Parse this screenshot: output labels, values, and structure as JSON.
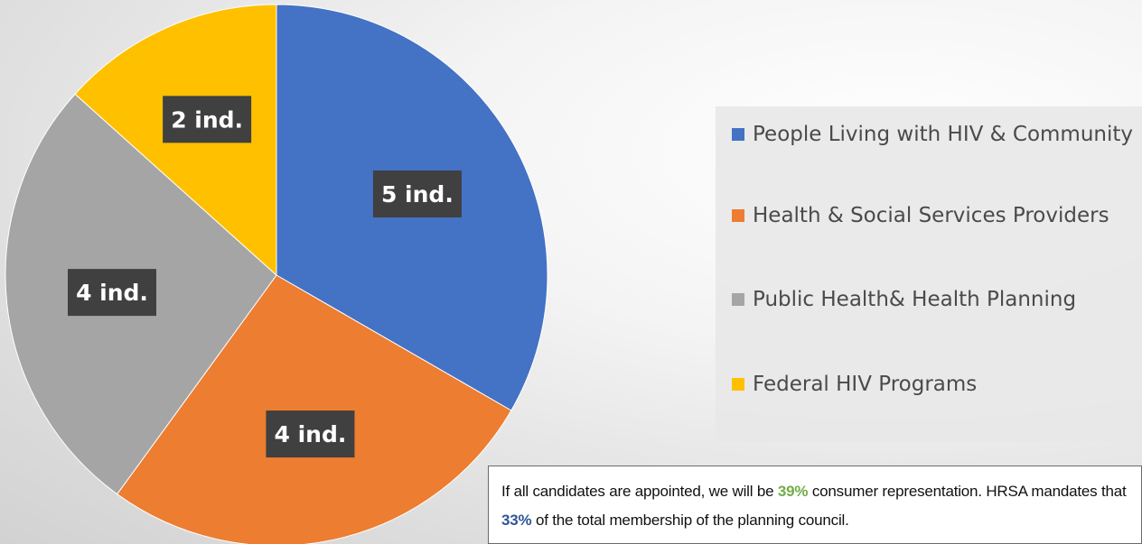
{
  "chart_data": {
    "type": "pie",
    "categories": [
      "People Living with HIV & Community",
      "Health & Social Services Providers",
      "Public Health& Health Planning",
      "Federal HIV Programs"
    ],
    "values": [
      5,
      4,
      4,
      2
    ],
    "data_labels": [
      "5 ind.",
      "4 ind.",
      "4 ind.",
      "2 ind."
    ],
    "colors": [
      "#4472c4",
      "#ed7d31",
      "#a5a5a5",
      "#ffc000"
    ],
    "legend_position": "right"
  },
  "legend": {
    "items": [
      {
        "label": "People Living with HIV & Community",
        "color": "#4472c4"
      },
      {
        "label": "Health & Social Services Providers",
        "color": "#ed7d31"
      },
      {
        "label": "Public Health& Health Planning",
        "color": "#a5a5a5"
      },
      {
        "label": "Federal HIV Programs",
        "color": "#ffc000"
      }
    ]
  },
  "note": {
    "part1": "If all candidates are appointed, we will be ",
    "pct1": "39%",
    "part2": " consumer representation. HRSA mandates that ",
    "pct2": "33%",
    "part3": " of the total membership of the planning council."
  }
}
